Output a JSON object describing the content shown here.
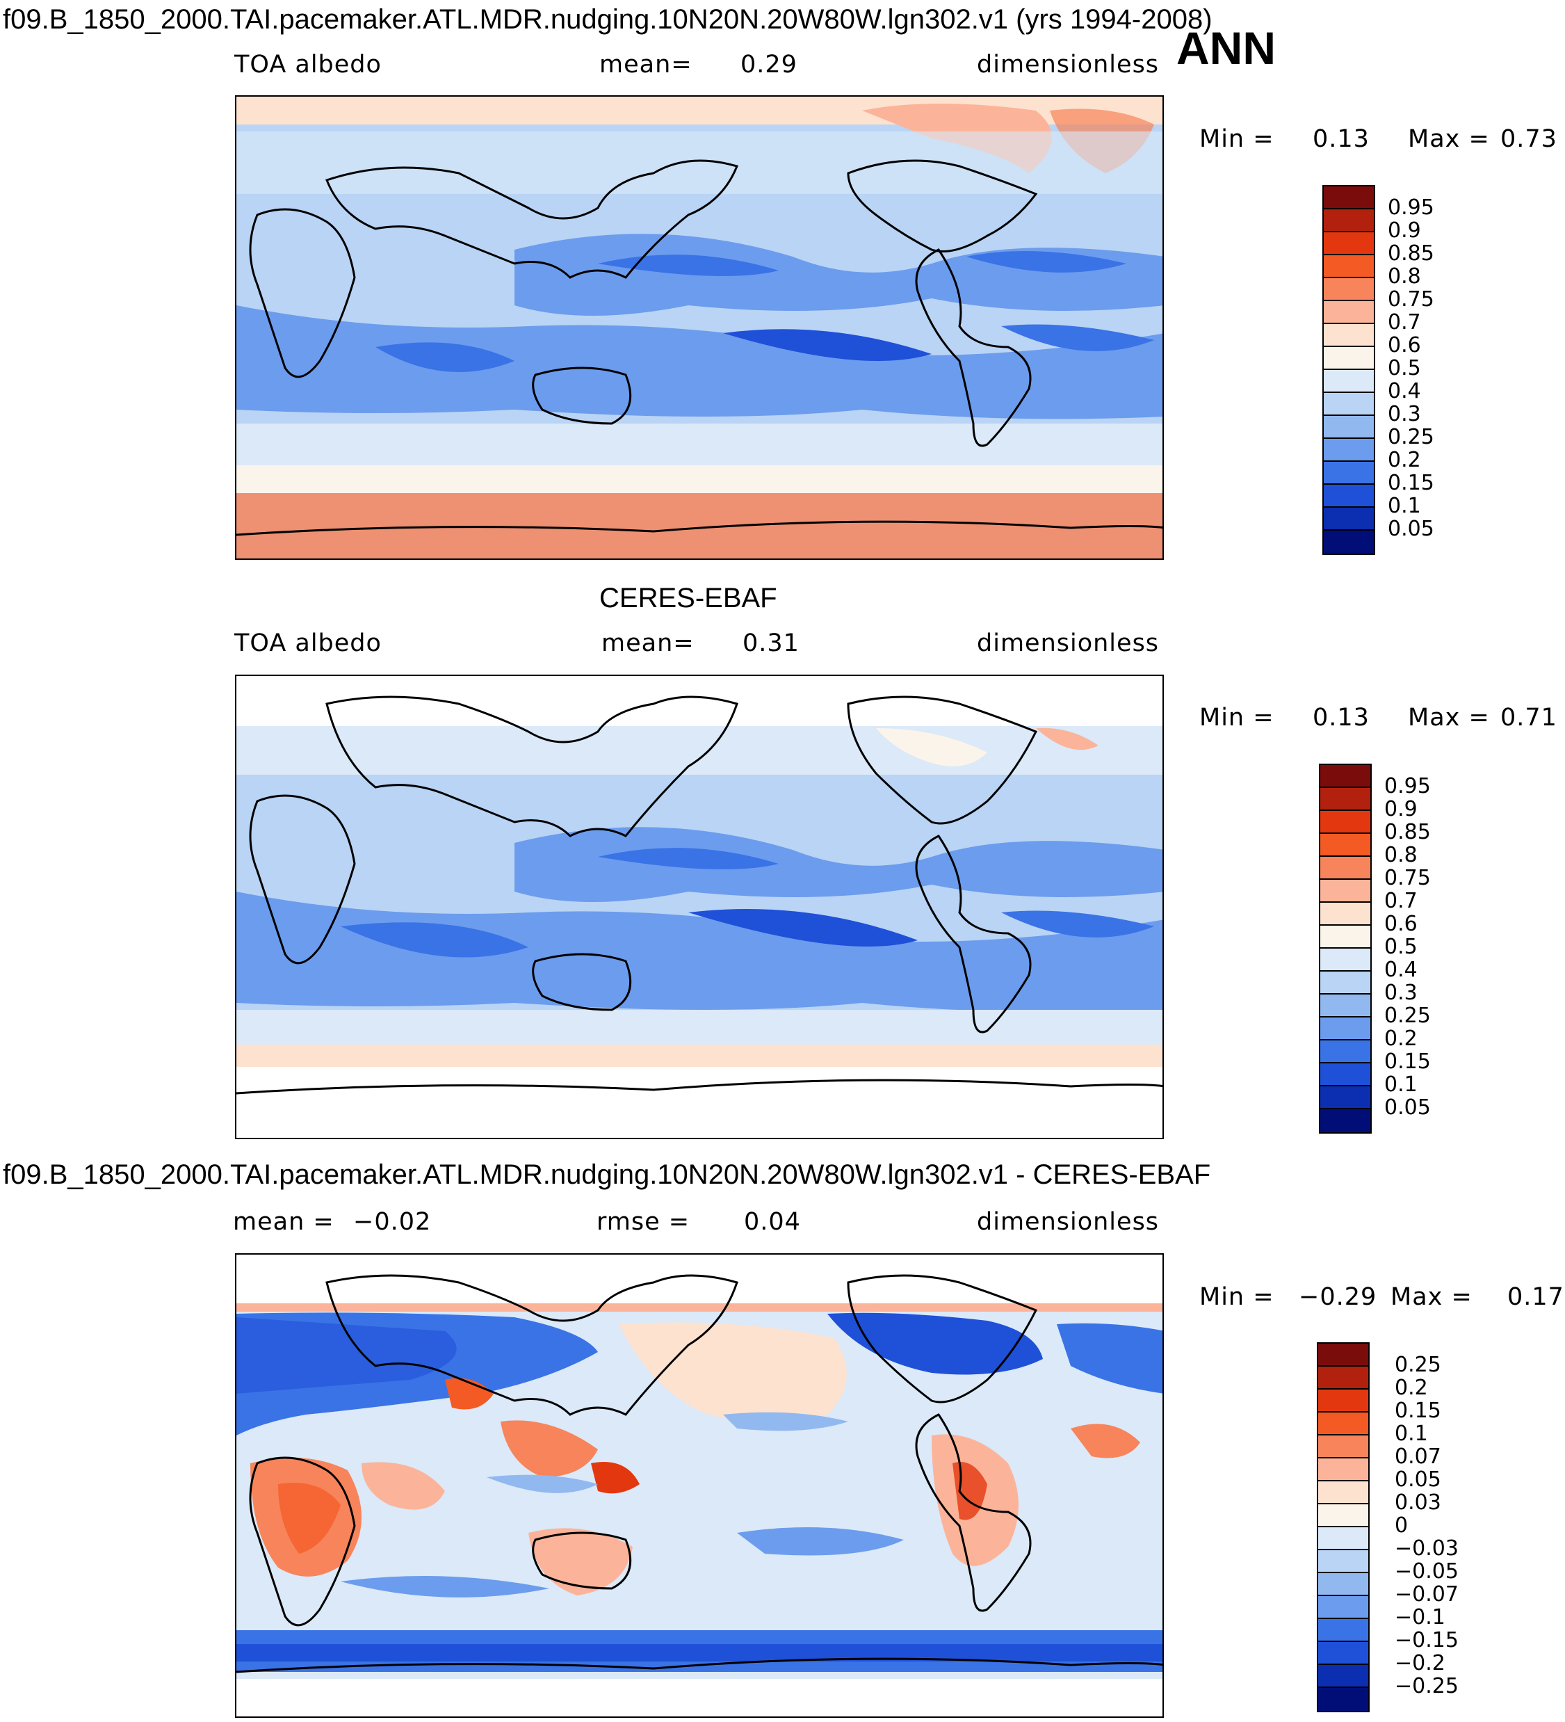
{
  "header": {
    "case_title": "f09.B_1850_2000.TAI.pacemaker.ATL.MDR.nudging.10N20N.20W80W.lgn302.v1 (yrs 1994-2008)",
    "season": "ANN"
  },
  "panel1": {
    "variable": "TOA albedo",
    "mean_label": "mean=",
    "mean_value": "0.29",
    "units": "dimensionless",
    "min_label": "Min =",
    "min_value": "0.13",
    "max_label": "Max =",
    "max_value": "0.73",
    "colorbar_labels": [
      "0.95",
      "0.9",
      "0.85",
      "0.8",
      "0.75",
      "0.7",
      "0.6",
      "0.5",
      "0.4",
      "0.3",
      "0.25",
      "0.2",
      "0.15",
      "0.1",
      "0.05"
    ],
    "colorbar_colors": [
      "#7a0c0c",
      "#b2200e",
      "#e3380f",
      "#f45a23",
      "#f7845a",
      "#fbb499",
      "#fde2d0",
      "#fbf4ea",
      "#dbe9f8",
      "#b9d4f4",
      "#92b8f0",
      "#6c9ced",
      "#3a73e6",
      "#1f50d8",
      "#0b2fb0",
      "#020e78"
    ]
  },
  "panel2": {
    "title": "CERES-EBAF",
    "variable": "TOA albedo",
    "mean_label": "mean=",
    "mean_value": "0.31",
    "units": "dimensionless",
    "min_label": "Min =",
    "min_value": "0.13",
    "max_label": "Max =",
    "max_value": "0.71",
    "colorbar_labels": [
      "0.95",
      "0.9",
      "0.85",
      "0.8",
      "0.75",
      "0.7",
      "0.6",
      "0.5",
      "0.4",
      "0.3",
      "0.25",
      "0.2",
      "0.15",
      "0.1",
      "0.05"
    ],
    "colorbar_colors": [
      "#7a0c0c",
      "#b2200e",
      "#e3380f",
      "#f45a23",
      "#f7845a",
      "#fbb499",
      "#fde2d0",
      "#fbf4ea",
      "#dbe9f8",
      "#b9d4f4",
      "#92b8f0",
      "#6c9ced",
      "#3a73e6",
      "#1f50d8",
      "#0b2fb0",
      "#020e78"
    ]
  },
  "panel3": {
    "title": "f09.B_1850_2000.TAI.pacemaker.ATL.MDR.nudging.10N20N.20W80W.lgn302.v1 - CERES-EBAF",
    "mean_label": "mean =",
    "mean_value": "−0.02",
    "rmse_label": "rmse =",
    "rmse_value": "0.04",
    "units": "dimensionless",
    "min_label": "Min =",
    "min_value": "−0.29",
    "max_label": "Max =",
    "max_value": "0.17",
    "colorbar_labels": [
      "0.25",
      "0.2",
      "0.15",
      "0.1",
      "0.07",
      "0.05",
      "0.03",
      "0",
      "−0.03",
      "−0.05",
      "−0.07",
      "−0.1",
      "−0.15",
      "−0.2",
      "−0.25"
    ],
    "colorbar_colors": [
      "#7a0c0c",
      "#b2200e",
      "#e3380f",
      "#f45a23",
      "#f7845a",
      "#fbb499",
      "#fde2d0",
      "#fbf4ea",
      "#dbe9f8",
      "#b9d4f4",
      "#92b8f0",
      "#6c9ced",
      "#3a73e6",
      "#1f50d8",
      "#0b2fb0",
      "#020e78"
    ]
  }
}
